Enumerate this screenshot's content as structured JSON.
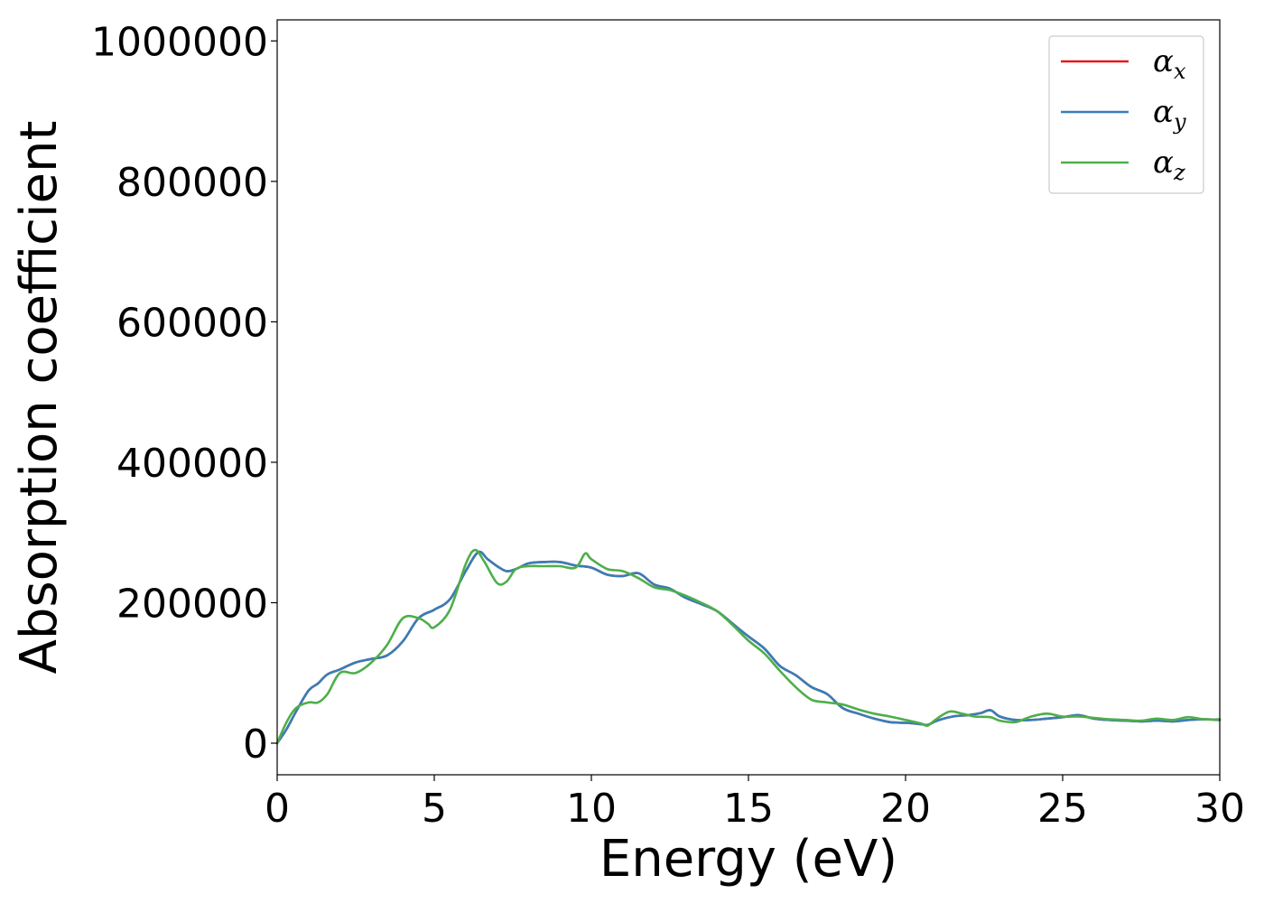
{
  "chart_data": {
    "type": "line",
    "title": "",
    "xlabel": "Energy (eV)",
    "ylabel": "Absorption coefficient",
    "xlim": [
      0,
      30
    ],
    "ylim": [
      -45000,
      1030000
    ],
    "xticks": [
      0,
      5,
      10,
      15,
      20,
      25,
      30
    ],
    "xtick_labels": [
      "0",
      "5",
      "10",
      "15",
      "20",
      "25",
      "30"
    ],
    "yticks": [
      0,
      200000,
      400000,
      600000,
      800000,
      1000000
    ],
    "ytick_labels": [
      "0",
      "200000",
      "400000",
      "600000",
      "800000",
      "1000000"
    ],
    "grid": false,
    "legend_position": "top-right",
    "series": [
      {
        "name": "α",
        "subscript": "x",
        "color": "#e41a1c",
        "x": [
          0,
          0.3,
          0.6,
          1.0,
          1.3,
          1.6,
          2.0,
          2.5,
          3.0,
          3.5,
          4.0,
          4.5,
          5.0,
          5.5,
          6.0,
          6.4,
          6.7,
          7.0,
          7.3,
          7.6,
          8.0,
          8.5,
          9.0,
          9.5,
          10.0,
          10.5,
          11.0,
          11.5,
          12.0,
          12.5,
          13.0,
          13.5,
          14.0,
          14.5,
          15.0,
          15.5,
          16.0,
          16.5,
          17.0,
          17.5,
          18.0,
          18.5,
          19.0,
          19.5,
          20.0,
          20.5,
          20.7,
          21.0,
          21.5,
          22.0,
          22.4,
          22.7,
          23.0,
          23.5,
          24.0,
          24.5,
          25.0,
          25.5,
          26.0,
          26.5,
          27.0,
          27.5,
          28.0,
          28.5,
          29.0,
          29.5,
          30.0
        ],
        "y": [
          0,
          20000,
          45000,
          75000,
          85000,
          98000,
          105000,
          115000,
          120000,
          125000,
          145000,
          178000,
          190000,
          205000,
          245000,
          272000,
          262000,
          252000,
          245000,
          248000,
          256000,
          258000,
          258000,
          253000,
          250000,
          240000,
          238000,
          242000,
          226000,
          220000,
          207000,
          198000,
          188000,
          170000,
          152000,
          135000,
          110000,
          97000,
          80000,
          70000,
          50000,
          42000,
          35000,
          30000,
          29000,
          27000,
          26000,
          32000,
          38000,
          40000,
          43000,
          47000,
          38000,
          33000,
          33000,
          35000,
          37000,
          40000,
          35000,
          33000,
          32000,
          31000,
          32000,
          31000,
          33000,
          34000,
          33000
        ]
      },
      {
        "name": "α",
        "subscript": "y",
        "color": "#377eb8",
        "x": [
          0,
          0.3,
          0.6,
          1.0,
          1.3,
          1.6,
          2.0,
          2.5,
          3.0,
          3.5,
          4.0,
          4.5,
          5.0,
          5.5,
          6.0,
          6.4,
          6.7,
          7.0,
          7.3,
          7.6,
          8.0,
          8.5,
          9.0,
          9.5,
          10.0,
          10.5,
          11.0,
          11.5,
          12.0,
          12.5,
          13.0,
          13.5,
          14.0,
          14.5,
          15.0,
          15.5,
          16.0,
          16.5,
          17.0,
          17.5,
          18.0,
          18.5,
          19.0,
          19.5,
          20.0,
          20.5,
          20.7,
          21.0,
          21.5,
          22.0,
          22.4,
          22.7,
          23.0,
          23.5,
          24.0,
          24.5,
          25.0,
          25.5,
          26.0,
          26.5,
          27.0,
          27.5,
          28.0,
          28.5,
          29.0,
          29.5,
          30.0
        ],
        "y": [
          0,
          20000,
          45000,
          75000,
          85000,
          98000,
          105000,
          115000,
          120000,
          125000,
          145000,
          178000,
          190000,
          205000,
          245000,
          272000,
          262000,
          252000,
          245000,
          248000,
          256000,
          258000,
          258000,
          253000,
          250000,
          240000,
          238000,
          242000,
          226000,
          220000,
          207000,
          198000,
          188000,
          170000,
          152000,
          135000,
          110000,
          97000,
          80000,
          70000,
          50000,
          42000,
          35000,
          30000,
          29000,
          27000,
          26000,
          32000,
          38000,
          40000,
          43000,
          47000,
          38000,
          33000,
          33000,
          35000,
          37000,
          40000,
          35000,
          33000,
          32000,
          31000,
          32000,
          31000,
          33000,
          34000,
          33000
        ]
      },
      {
        "name": "α",
        "subscript": "z",
        "color": "#4daf4a",
        "x": [
          0,
          0.3,
          0.6,
          1.0,
          1.3,
          1.6,
          2.0,
          2.5,
          3.0,
          3.5,
          4.0,
          4.5,
          4.8,
          5.0,
          5.5,
          6.0,
          6.3,
          6.6,
          7.0,
          7.3,
          7.6,
          8.0,
          8.5,
          9.0,
          9.5,
          9.8,
          10.0,
          10.5,
          11.0,
          11.5,
          12.0,
          12.5,
          13.0,
          13.5,
          14.0,
          14.5,
          15.0,
          15.5,
          16.0,
          16.5,
          17.0,
          17.5,
          18.0,
          18.5,
          19.0,
          19.5,
          20.0,
          20.5,
          20.7,
          21.0,
          21.4,
          21.8,
          22.2,
          22.7,
          23.0,
          23.5,
          24.0,
          24.5,
          25.0,
          25.5,
          26.0,
          26.5,
          27.0,
          27.5,
          28.0,
          28.5,
          29.0,
          29.5,
          30.0
        ],
        "y": [
          0,
          30000,
          50000,
          58000,
          58000,
          70000,
          100000,
          100000,
          115000,
          140000,
          178000,
          178000,
          170000,
          165000,
          190000,
          255000,
          275000,
          258000,
          228000,
          230000,
          248000,
          252000,
          252000,
          252000,
          250000,
          270000,
          262000,
          248000,
          245000,
          235000,
          222000,
          218000,
          210000,
          200000,
          188000,
          168000,
          146000,
          128000,
          103000,
          80000,
          62000,
          58000,
          55000,
          48000,
          42000,
          38000,
          33000,
          28000,
          25000,
          35000,
          45000,
          42000,
          38000,
          37000,
          32000,
          30000,
          38000,
          42000,
          38000,
          38000,
          36000,
          34000,
          33000,
          32000,
          35000,
          33000,
          37000,
          34000,
          34000
        ]
      }
    ]
  }
}
